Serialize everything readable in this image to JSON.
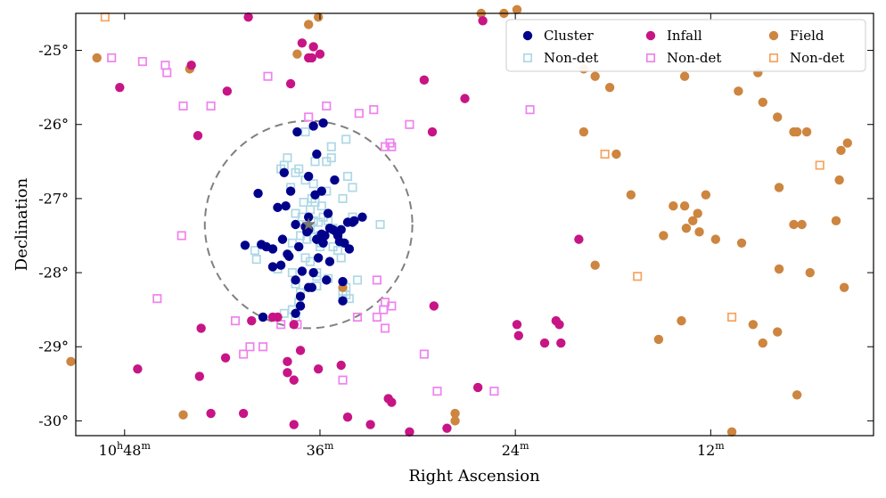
{
  "chart_data": {
    "type": "scatter",
    "xlabel": "Right Ascension",
    "ylabel": "Declination",
    "x_unit": "minutes of right ascension (10h offset)",
    "xlim": [
      51.0,
      2.0
    ],
    "ylim": [
      -30.2,
      -24.5
    ],
    "x_ticks": [
      {
        "value": 48,
        "h": "10",
        "h_sup": "h",
        "m": "48",
        "m_sup": "m"
      },
      {
        "value": 36,
        "h": "",
        "h_sup": "",
        "m": "36",
        "m_sup": "m"
      },
      {
        "value": 24,
        "h": "",
        "h_sup": "",
        "m": "24",
        "m_sup": "m"
      },
      {
        "value": 12,
        "h": "",
        "h_sup": "",
        "m": "12",
        "m_sup": "m"
      }
    ],
    "y_ticks": [
      {
        "value": -25,
        "label": "-25°"
      },
      {
        "value": -26,
        "label": "-26°"
      },
      {
        "value": -27,
        "label": "-27°"
      },
      {
        "value": -28,
        "label": "-28°"
      },
      {
        "value": -29,
        "label": "-29°"
      },
      {
        "value": -30,
        "label": "-30°"
      }
    ],
    "circle": {
      "center": [
        36.7,
        -27.35
      ],
      "radius_dec": 1.4
    },
    "center_star": [
      36.7,
      -27.35
    ],
    "legend": {
      "placement": "top-right",
      "columns": 3
    },
    "colors": {
      "cluster": "#00008b",
      "cluster_nondet": "#add8e6",
      "infall": "#c71585",
      "infall_nondet": "#ee82ee",
      "field": "#cd853f",
      "field_nondet": "#f4a460",
      "circle": "#808080"
    },
    "series": [
      {
        "name": "Cluster",
        "marker": "circle",
        "color": "#00008b",
        "legend_col": 0,
        "points": [
          [
            35.8,
            -25.98
          ],
          [
            36.4,
            -26.02
          ],
          [
            37.4,
            -26.1
          ],
          [
            36.2,
            -26.4
          ],
          [
            38.2,
            -26.65
          ],
          [
            37.8,
            -26.9
          ],
          [
            39.8,
            -26.93
          ],
          [
            36.3,
            -26.95
          ],
          [
            35.1,
            -26.75
          ],
          [
            36.7,
            -26.7
          ],
          [
            35.9,
            -26.9
          ],
          [
            38.1,
            -27.1
          ],
          [
            38.6,
            -27.12
          ],
          [
            36.7,
            -27.25
          ],
          [
            37.5,
            -27.35
          ],
          [
            36.9,
            -27.38
          ],
          [
            35.5,
            -27.2
          ],
          [
            33.4,
            -27.25
          ],
          [
            33.9,
            -27.3
          ],
          [
            34.3,
            -27.32
          ],
          [
            35.2,
            -27.42
          ],
          [
            34.7,
            -27.42
          ],
          [
            35.9,
            -27.48
          ],
          [
            34.9,
            -27.5
          ],
          [
            36.2,
            -27.55
          ],
          [
            34.5,
            -27.6
          ],
          [
            38.3,
            -27.55
          ],
          [
            40.6,
            -27.63
          ],
          [
            39.6,
            -27.62
          ],
          [
            39.3,
            -27.65
          ],
          [
            38.9,
            -27.68
          ],
          [
            37.9,
            -27.78
          ],
          [
            36.1,
            -27.8
          ],
          [
            35.4,
            -27.85
          ],
          [
            37.1,
            -27.98
          ],
          [
            34.6,
            -28.12
          ],
          [
            36.7,
            -28.2
          ],
          [
            37.2,
            -28.32
          ],
          [
            34.6,
            -28.38
          ],
          [
            37.5,
            -28.55
          ],
          [
            37.2,
            -28.45
          ],
          [
            39.5,
            -28.6
          ],
          [
            35.8,
            -27.6
          ],
          [
            38.9,
            -27.92
          ],
          [
            36.7,
            -27.42
          ],
          [
            34.2,
            -27.68
          ],
          [
            35.7,
            -27.5
          ],
          [
            37.5,
            -28.1
          ],
          [
            36.4,
            -28.0
          ],
          [
            38.4,
            -27.9
          ],
          [
            35.0,
            -27.45
          ],
          [
            36.8,
            -27.45
          ],
          [
            35.4,
            -27.4
          ],
          [
            34.0,
            -27.32
          ],
          [
            38.0,
            -27.75
          ],
          [
            37.3,
            -27.65
          ],
          [
            36.2,
            -27.55
          ],
          [
            36.5,
            -28.2
          ],
          [
            35.6,
            -28.1
          ],
          [
            34.8,
            -27.58
          ]
        ]
      },
      {
        "name": "Non-det",
        "marker": "square",
        "color": "#add8e6",
        "legend_col": 0,
        "points": [
          [
            36.9,
            -26.1
          ],
          [
            36.3,
            -26.5
          ],
          [
            38.0,
            -26.45
          ],
          [
            38.2,
            -26.55
          ],
          [
            37.5,
            -26.65
          ],
          [
            35.6,
            -26.5
          ],
          [
            35.3,
            -26.45
          ],
          [
            34.4,
            -26.2
          ],
          [
            35.3,
            -26.3
          ],
          [
            37.3,
            -26.6
          ],
          [
            36.9,
            -26.75
          ],
          [
            35.6,
            -26.9
          ],
          [
            34.3,
            -26.7
          ],
          [
            34.0,
            -26.85
          ],
          [
            34.6,
            -27.0
          ],
          [
            36.5,
            -27.0
          ],
          [
            37.0,
            -27.05
          ],
          [
            36.3,
            -27.05
          ],
          [
            35.9,
            -27.1
          ],
          [
            37.5,
            -27.2
          ],
          [
            37.1,
            -27.25
          ],
          [
            36.4,
            -27.3
          ],
          [
            36.1,
            -27.32
          ],
          [
            35.8,
            -27.25
          ],
          [
            32.3,
            -27.35
          ],
          [
            36.6,
            -27.42
          ],
          [
            36.0,
            -27.5
          ],
          [
            36.4,
            -27.52
          ],
          [
            37.7,
            -27.6
          ],
          [
            35.9,
            -27.6
          ],
          [
            35.2,
            -27.65
          ],
          [
            34.9,
            -27.7
          ],
          [
            40.0,
            -27.7
          ],
          [
            39.9,
            -27.82
          ],
          [
            36.9,
            -27.8
          ],
          [
            36.6,
            -27.85
          ],
          [
            34.7,
            -27.8
          ],
          [
            38.6,
            -27.95
          ],
          [
            37.7,
            -28.0
          ],
          [
            36.2,
            -28.0
          ],
          [
            36.2,
            -28.05
          ],
          [
            35.5,
            -28.08
          ],
          [
            33.7,
            -28.1
          ],
          [
            37.5,
            -28.15
          ],
          [
            36.2,
            -28.18
          ],
          [
            34.4,
            -28.2
          ],
          [
            37.2,
            -28.27
          ],
          [
            34.6,
            -28.25
          ],
          [
            34.4,
            -28.3
          ],
          [
            34.6,
            -28.35
          ],
          [
            37.3,
            -28.4
          ],
          [
            34.2,
            -28.35
          ],
          [
            37.7,
            -28.5
          ],
          [
            38.2,
            -28.55
          ],
          [
            37.5,
            -28.6
          ],
          [
            36.6,
            -27.15
          ],
          [
            37.2,
            -27.5
          ],
          [
            35.5,
            -27.3
          ],
          [
            34.0,
            -27.25
          ],
          [
            38.4,
            -26.6
          ],
          [
            36.0,
            -27.65
          ],
          [
            35.2,
            -27.4
          ],
          [
            36.8,
            -27.55
          ],
          [
            36.4,
            -26.8
          ],
          [
            37.8,
            -26.85
          ]
        ]
      },
      {
        "name": "Infall",
        "marker": "circle",
        "color": "#c71585",
        "legend_col": 1,
        "points": [
          [
            40.4,
            -24.55
          ],
          [
            37.1,
            -24.9
          ],
          [
            36.4,
            -24.95
          ],
          [
            36.5,
            -25.1
          ],
          [
            36.7,
            -25.1
          ],
          [
            36.0,
            -25.05
          ],
          [
            43.9,
            -25.2
          ],
          [
            48.3,
            -25.5
          ],
          [
            41.7,
            -25.55
          ],
          [
            37.8,
            -25.45
          ],
          [
            29.6,
            -25.4
          ],
          [
            27.1,
            -25.65
          ],
          [
            26.0,
            -24.6
          ],
          [
            43.5,
            -26.15
          ],
          [
            29.1,
            -26.1
          ],
          [
            20.1,
            -27.55
          ],
          [
            29.0,
            -28.45
          ],
          [
            23.9,
            -28.7
          ],
          [
            21.3,
            -28.7
          ],
          [
            22.2,
            -28.95
          ],
          [
            23.8,
            -28.85
          ],
          [
            38.6,
            -28.6
          ],
          [
            43.3,
            -28.75
          ],
          [
            37.6,
            -28.7
          ],
          [
            40.2,
            -28.65
          ],
          [
            38.9,
            -28.6
          ],
          [
            41.8,
            -29.15
          ],
          [
            37.2,
            -29.05
          ],
          [
            38.0,
            -29.2
          ],
          [
            47.2,
            -29.3
          ],
          [
            38.0,
            -29.35
          ],
          [
            36.1,
            -29.3
          ],
          [
            34.7,
            -29.25
          ],
          [
            43.4,
            -29.4
          ],
          [
            37.6,
            -29.45
          ],
          [
            31.8,
            -29.7
          ],
          [
            31.6,
            -29.75
          ],
          [
            26.3,
            -29.55
          ],
          [
            42.7,
            -29.9
          ],
          [
            40.7,
            -29.9
          ],
          [
            34.3,
            -29.95
          ],
          [
            37.6,
            -30.05
          ],
          [
            32.9,
            -30.05
          ],
          [
            30.5,
            -30.15
          ],
          [
            28.2,
            -30.1
          ],
          [
            21.2,
            -28.95
          ],
          [
            21.5,
            -28.65
          ]
        ]
      },
      {
        "name": "Non-det",
        "marker": "square",
        "color": "#ee82ee",
        "legend_col": 1,
        "points": [
          [
            48.8,
            -25.1
          ],
          [
            46.9,
            -25.15
          ],
          [
            45.5,
            -25.2
          ],
          [
            45.4,
            -25.3
          ],
          [
            39.2,
            -25.35
          ],
          [
            42.7,
            -25.75
          ],
          [
            44.4,
            -25.75
          ],
          [
            36.7,
            -25.9
          ],
          [
            35.6,
            -25.75
          ],
          [
            32.7,
            -25.8
          ],
          [
            33.6,
            -25.85
          ],
          [
            23.1,
            -25.8
          ],
          [
            30.5,
            -26.0
          ],
          [
            31.7,
            -26.25
          ],
          [
            31.6,
            -26.3
          ],
          [
            32.0,
            -26.3
          ],
          [
            44.5,
            -27.5
          ],
          [
            46.0,
            -28.35
          ],
          [
            41.2,
            -28.65
          ],
          [
            32.5,
            -28.1
          ],
          [
            32.0,
            -28.4
          ],
          [
            31.6,
            -28.45
          ],
          [
            32.1,
            -28.5
          ],
          [
            32.5,
            -28.6
          ],
          [
            33.7,
            -28.6
          ],
          [
            37.4,
            -28.7
          ],
          [
            38.4,
            -28.7
          ],
          [
            40.3,
            -29.0
          ],
          [
            40.7,
            -29.1
          ],
          [
            39.5,
            -29.0
          ],
          [
            28.8,
            -29.6
          ],
          [
            29.6,
            -29.1
          ],
          [
            25.3,
            -29.6
          ],
          [
            34.6,
            -29.45
          ],
          [
            32.0,
            -28.75
          ]
        ]
      },
      {
        "name": "Field",
        "marker": "circle",
        "color": "#cd853f",
        "legend_col": 2,
        "points": [
          [
            49.7,
            -25.1
          ],
          [
            44.0,
            -25.25
          ],
          [
            37.4,
            -25.05
          ],
          [
            36.7,
            -24.65
          ],
          [
            36.1,
            -24.55
          ],
          [
            26.1,
            -24.5
          ],
          [
            23.9,
            -24.45
          ],
          [
            19.8,
            -25.25
          ],
          [
            19.1,
            -25.35
          ],
          [
            18.2,
            -25.5
          ],
          [
            13.6,
            -25.35
          ],
          [
            10.3,
            -25.55
          ],
          [
            8.8,
            -25.7
          ],
          [
            7.9,
            -25.9
          ],
          [
            6.9,
            -26.1
          ],
          [
            6.7,
            -26.1
          ],
          [
            6.1,
            -26.1
          ],
          [
            4.0,
            -26.35
          ],
          [
            4.1,
            -26.75
          ],
          [
            3.6,
            -26.25
          ],
          [
            19.8,
            -26.1
          ],
          [
            17.8,
            -26.4
          ],
          [
            16.9,
            -26.95
          ],
          [
            14.3,
            -27.1
          ],
          [
            13.6,
            -27.1
          ],
          [
            12.8,
            -27.2
          ],
          [
            13.1,
            -27.3
          ],
          [
            12.3,
            -26.95
          ],
          [
            14.9,
            -27.5
          ],
          [
            13.5,
            -27.4
          ],
          [
            12.7,
            -27.45
          ],
          [
            11.7,
            -27.55
          ],
          [
            10.1,
            -27.6
          ],
          [
            7.8,
            -26.85
          ],
          [
            6.9,
            -27.35
          ],
          [
            6.4,
            -27.35
          ],
          [
            4.3,
            -27.3
          ],
          [
            5.9,
            -28.0
          ],
          [
            7.8,
            -27.95
          ],
          [
            3.8,
            -28.2
          ],
          [
            19.1,
            -27.9
          ],
          [
            34.6,
            -28.2
          ],
          [
            13.8,
            -28.65
          ],
          [
            15.2,
            -28.9
          ],
          [
            9.4,
            -28.7
          ],
          [
            7.9,
            -28.8
          ],
          [
            8.8,
            -28.95
          ],
          [
            6.7,
            -29.65
          ],
          [
            27.7,
            -29.9
          ],
          [
            27.7,
            -30.0
          ],
          [
            44.4,
            -29.92
          ],
          [
            10.7,
            -30.15
          ],
          [
            51.3,
            -29.2
          ],
          [
            24.7,
            -24.5
          ],
          [
            9.1,
            -25.3
          ]
        ]
      },
      {
        "name": "Non-det",
        "marker": "square",
        "color": "#f4a460",
        "legend_col": 2,
        "points": [
          [
            49.2,
            -24.55
          ],
          [
            18.5,
            -26.4
          ],
          [
            16.5,
            -28.05
          ],
          [
            5.3,
            -26.55
          ],
          [
            10.7,
            -28.6
          ]
        ]
      }
    ]
  }
}
